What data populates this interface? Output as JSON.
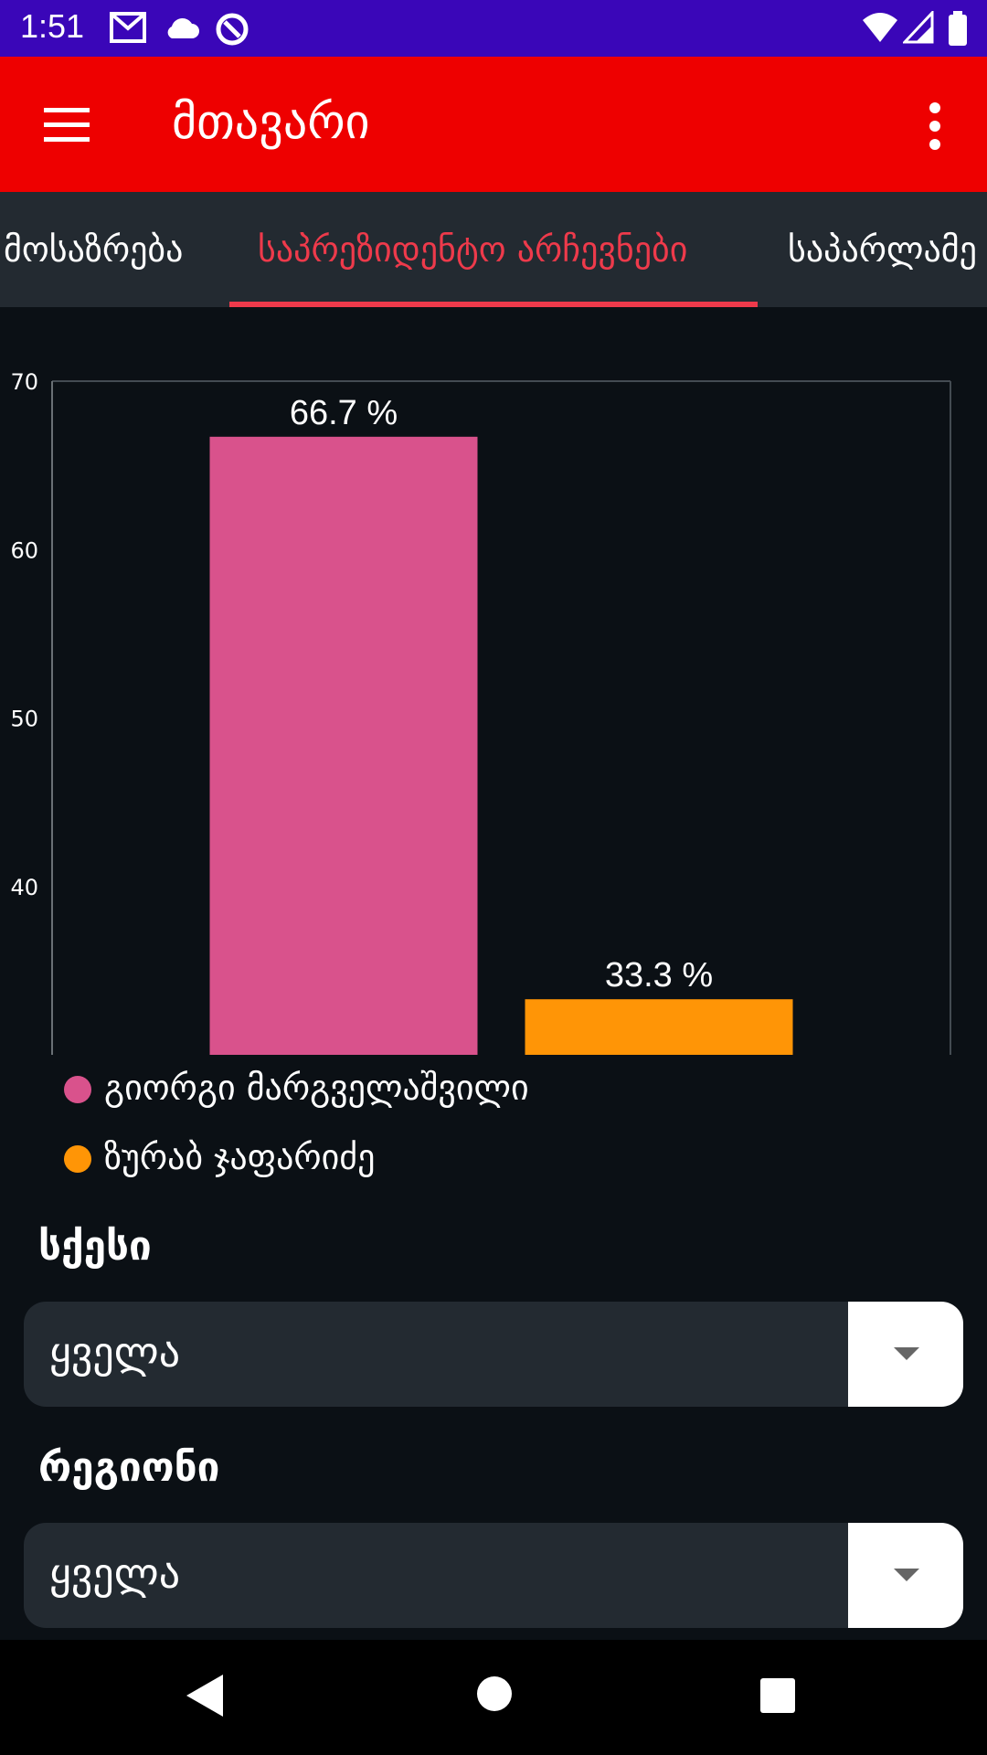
{
  "status": {
    "time": "1:51"
  },
  "appbar": {
    "title": "მთავარი",
    "background": "#ee0000"
  },
  "tabs": [
    {
      "label": "მოსაზრება",
      "active": false
    },
    {
      "label": "საპრეზიდენტო არჩევნები",
      "active": true
    },
    {
      "label": "საპარლამე",
      "active": false
    }
  ],
  "chart_data": {
    "type": "bar",
    "categories": [
      "გიორგი მარგველაშვილი",
      "ზურაბ ჯაფარიძე"
    ],
    "values": [
      66.7,
      33.3
    ],
    "value_labels": [
      "66.7 %",
      "33.3 %"
    ],
    "colors": [
      "#d9528c",
      "#ff9506"
    ],
    "ylim": [
      30,
      70
    ],
    "yticks": [
      40,
      50,
      60,
      70
    ],
    "legend_position": "bottom-left",
    "grid": false
  },
  "filters": [
    {
      "label": "სქესი",
      "value": "ყველა"
    },
    {
      "label": "რეგიონი",
      "value": "ყველა"
    }
  ]
}
